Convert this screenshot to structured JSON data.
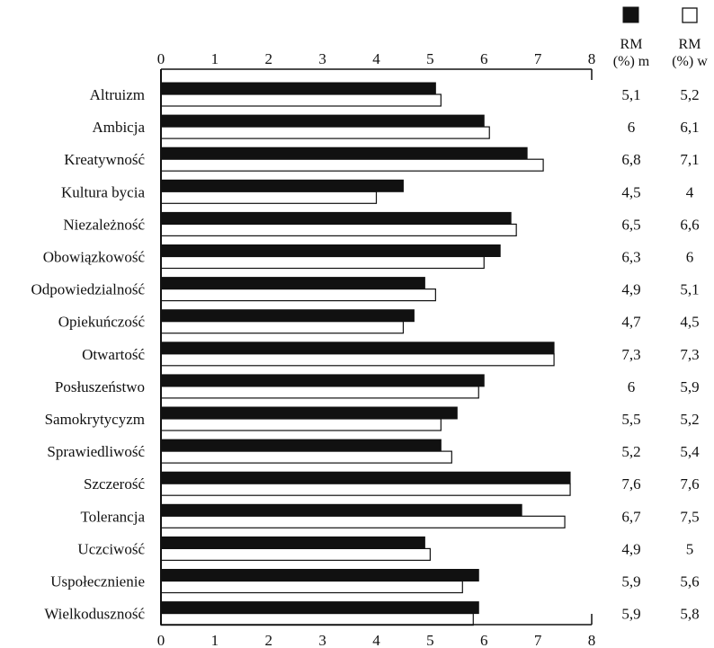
{
  "chart_data": {
    "type": "bar",
    "orientation": "horizontal",
    "categories": [
      "Altruizm",
      "Ambicja",
      "Kreatywność",
      "Kultura bycia",
      "Niezależność",
      "Obowiązkowość",
      "Odpowiedzialność",
      "Opiekuńczość",
      "Otwartość",
      "Posłuszeństwo",
      "Samokrytycyzm",
      "Sprawiedliwość",
      "Szczerość",
      "Tolerancja",
      "Uczciwość",
      "Uspołecznienie",
      "Wielkoduszność"
    ],
    "series": [
      {
        "name": "m",
        "color": "#111111",
        "values": [
          5.1,
          6,
          6.8,
          4.5,
          6.5,
          6.3,
          4.9,
          4.7,
          7.3,
          6,
          5.5,
          5.2,
          7.6,
          6.7,
          4.9,
          5.9,
          5.9
        ]
      },
      {
        "name": "w",
        "color": "#ffffff",
        "values": [
          5.2,
          6.1,
          7.1,
          4,
          6.6,
          6,
          5.1,
          4.5,
          7.3,
          5.9,
          5.2,
          5.4,
          7.6,
          7.5,
          5,
          5.6,
          5.8
        ]
      }
    ],
    "value_labels": {
      "m": [
        "5,1",
        "6",
        "6,8",
        "4,5",
        "6,5",
        "6,3",
        "4,9",
        "4,7",
        "7,3",
        "6",
        "5,5",
        "5,2",
        "7,6",
        "6,7",
        "4,9",
        "5,9",
        "5,9"
      ],
      "w": [
        "5,2",
        "6,1",
        "7,1",
        "4",
        "6,6",
        "6",
        "5,1",
        "4,5",
        "7,3",
        "5,9",
        "5,2",
        "5,4",
        "7,6",
        "7,5",
        "5",
        "5,6",
        "5,8"
      ]
    },
    "xlim": [
      0,
      8
    ],
    "xticks": [
      "0",
      "1",
      "2",
      "3",
      "4",
      "5",
      "6",
      "7",
      "8"
    ],
    "column_headers": [
      {
        "line1": "RM",
        "line2": "(%) m"
      },
      {
        "line1": "RM",
        "line2": "(%) w"
      }
    ]
  }
}
